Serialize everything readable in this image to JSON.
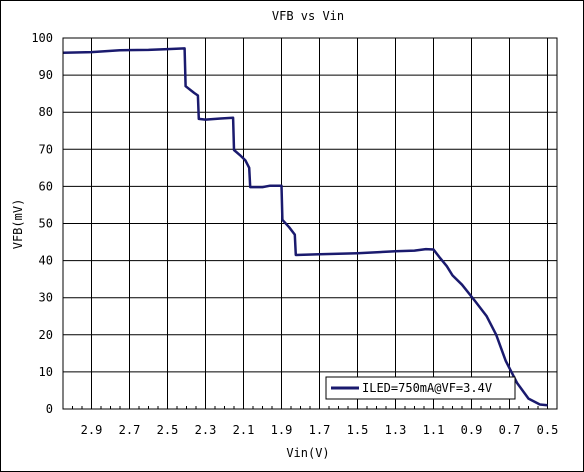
{
  "chart_data": {
    "type": "line",
    "title": "VFB vs Vin",
    "xlabel": "Vin(V)",
    "ylabel": "VFB(mV)",
    "x_reversed": true,
    "xlim": [
      3.05,
      0.45
    ],
    "ylim": [
      0,
      100
    ],
    "x_ticks": [
      "2.9",
      "2.7",
      "2.5",
      "2.3",
      "2.1",
      "1.9",
      "1.7",
      "1.5",
      "1.3",
      "1.1",
      "0.9",
      "0.7",
      "0.5"
    ],
    "x_tick_values": [
      2.9,
      2.7,
      2.5,
      2.3,
      2.1,
      1.9,
      1.7,
      1.5,
      1.3,
      1.1,
      0.9,
      0.7,
      0.5
    ],
    "y_ticks": [
      "0",
      "10",
      "20",
      "30",
      "40",
      "50",
      "60",
      "70",
      "80",
      "90",
      "100"
    ],
    "y_tick_values": [
      0,
      10,
      20,
      30,
      40,
      50,
      60,
      70,
      80,
      90,
      100
    ],
    "grid": true,
    "legend_position": "bottom-right",
    "series": [
      {
        "name": "ILED=750mA@VF=3.4V",
        "color": "#1a1a6e",
        "points": [
          [
            3.05,
            96.0
          ],
          [
            2.9,
            96.2
          ],
          [
            2.75,
            96.7
          ],
          [
            2.6,
            96.8
          ],
          [
            2.5,
            97.0
          ],
          [
            2.41,
            97.2
          ],
          [
            2.405,
            87.0
          ],
          [
            2.36,
            85.2
          ],
          [
            2.34,
            84.5
          ],
          [
            2.335,
            78.2
          ],
          [
            2.3,
            78.0
          ],
          [
            2.22,
            78.3
          ],
          [
            2.155,
            78.5
          ],
          [
            2.15,
            69.8
          ],
          [
            2.12,
            68.5
          ],
          [
            2.09,
            67.0
          ],
          [
            2.07,
            65.0
          ],
          [
            2.065,
            59.8
          ],
          [
            2.0,
            59.8
          ],
          [
            1.96,
            60.2
          ],
          [
            1.9,
            60.2
          ],
          [
            1.895,
            51.0
          ],
          [
            1.86,
            49.0
          ],
          [
            1.83,
            47.0
          ],
          [
            1.825,
            41.5
          ],
          [
            1.7,
            41.7
          ],
          [
            1.5,
            42.0
          ],
          [
            1.3,
            42.5
          ],
          [
            1.2,
            42.7
          ],
          [
            1.14,
            43.1
          ],
          [
            1.1,
            43.0
          ],
          [
            1.07,
            41.0
          ],
          [
            1.03,
            38.5
          ],
          [
            1.0,
            36.0
          ],
          [
            0.95,
            33.5
          ],
          [
            0.88,
            29.0
          ],
          [
            0.82,
            25.0
          ],
          [
            0.77,
            20.0
          ],
          [
            0.72,
            13.0
          ],
          [
            0.66,
            7.0
          ],
          [
            0.6,
            2.8
          ],
          [
            0.54,
            1.2
          ],
          [
            0.5,
            1.0
          ]
        ]
      }
    ]
  }
}
